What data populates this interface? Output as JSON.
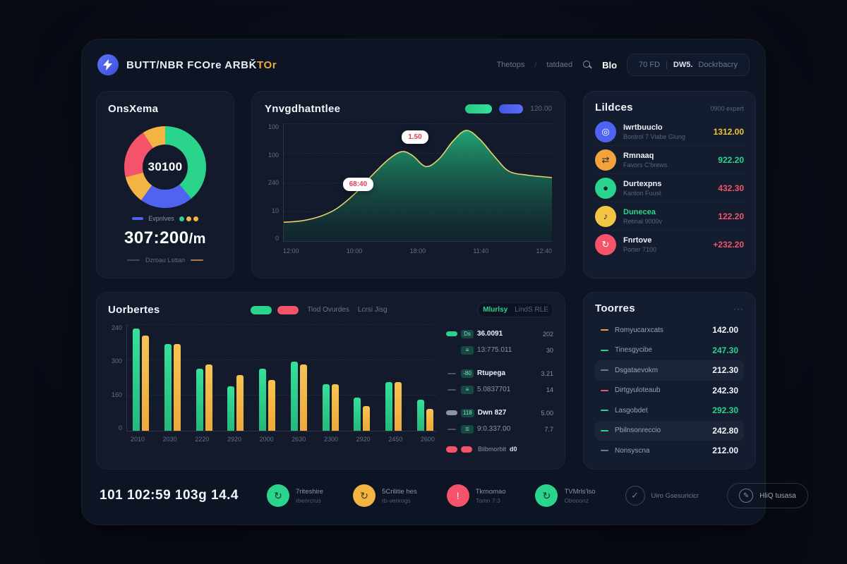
{
  "colors": {
    "green": "#2bd48d",
    "yellow": "#f2b544",
    "red": "#f4536a",
    "blue": "#4f63f0",
    "accent_text": "#f0a93c"
  },
  "header": {
    "brand_main": "BUTT/NBR FCOre ARBǨ",
    "brand_accent": "TOr",
    "nav_link1": "Thetops",
    "nav_sep": "/",
    "nav_link2": "tatdaed",
    "balance": "Blo",
    "pill_left": "70 FD",
    "pill_mid": "DW5.",
    "pill_right": "Dockrbacry"
  },
  "donut_card": {
    "title": "OnsXema",
    "center_value": "30100",
    "legend_label": "Evpnlves",
    "rate_value": "307:200",
    "rate_unit": "/m",
    "footnote": "Dzroau Lsttan",
    "segments": [
      {
        "label": "green",
        "color": "#2bd48d",
        "pct": 39
      },
      {
        "label": "blue",
        "color": "#4f63f0",
        "pct": 21
      },
      {
        "label": "yellow-bottom",
        "color": "#f2b544",
        "pct": 11
      },
      {
        "label": "red",
        "color": "#f4536a",
        "pct": 20
      },
      {
        "label": "yellow-top",
        "color": "#f2b544",
        "pct": 9
      }
    ]
  },
  "line_card": {
    "title": "Ynvgdhatntlee",
    "legend_value": "120.00",
    "tooltip_low": "68:40",
    "tooltip_high": "1.50",
    "chart": {
      "type": "area",
      "y_ticks": [
        "100",
        "100",
        "240",
        "10",
        "0"
      ],
      "x_ticks": [
        "12:00",
        "10:00",
        "18:00",
        "11:40",
        "12:40"
      ],
      "ymax": 150,
      "points": [
        [
          0,
          24
        ],
        [
          7,
          26
        ],
        [
          14,
          32
        ],
        [
          20,
          42
        ],
        [
          27,
          62
        ],
        [
          33,
          84
        ],
        [
          39,
          104
        ],
        [
          44,
          114
        ],
        [
          48,
          109
        ],
        [
          53,
          95
        ],
        [
          58,
          105
        ],
        [
          63,
          127
        ],
        [
          68,
          141
        ],
        [
          73,
          130
        ],
        [
          79,
          106
        ],
        [
          84,
          89
        ],
        [
          91,
          84
        ],
        [
          100,
          81
        ]
      ]
    }
  },
  "positions_card": {
    "title": "Lildces",
    "subtitle": "0900 expert",
    "items": [
      {
        "icon": "◎",
        "name": "Iwrtbuuclo",
        "desc": "Bontrol 7 Viabe Giung",
        "value": "1312.00"
      },
      {
        "icon": "⇄",
        "name": "Rmnaaq",
        "desc": "Favors C'brews",
        "value": "922.20"
      },
      {
        "icon": "●",
        "name": "Durtexpns",
        "desc": "Kanton Fuust",
        "value": "432.30"
      },
      {
        "icon": "♪",
        "name": "Dunecea",
        "desc": "Retinal 9000v",
        "value": "122.20"
      },
      {
        "icon": "↻",
        "name": "Fnrtove",
        "desc": "Porter 7100",
        "value": "+232.20"
      }
    ]
  },
  "bars_card": {
    "title": "Uorbertes",
    "legend_label1": "Tiod Ovurdes",
    "legend_label2": "Lcrsi Jisg",
    "toggle_active": "Mlurlsy",
    "toggle_inactive": "LindS RLE",
    "chart": {
      "type": "bar",
      "y_ticks": [
        "240",
        "300",
        "160",
        "0"
      ],
      "categories": [
        "2010",
        "2030",
        "2220",
        "2920",
        "2000",
        "2630",
        "2300",
        "2920",
        "2450",
        "2600"
      ],
      "series": [
        {
          "name": "green",
          "values": [
            230,
            195,
            140,
            100,
            140,
            155,
            105,
            75,
            110,
            70
          ]
        },
        {
          "name": "yellow",
          "values": [
            215,
            195,
            150,
            125,
            115,
            150,
            105,
            55,
            110,
            50
          ]
        }
      ],
      "ymax": 240
    },
    "table": {
      "rows": [
        {
          "badge": "Ds",
          "label": "36.0091",
          "value": "202"
        },
        {
          "badge": "≡",
          "label": "13:775.011",
          "value": "30"
        },
        {
          "badge": "-80",
          "label": "Rtupega",
          "value": "3.21"
        },
        {
          "badge": "≡",
          "label": "5.0837701",
          "value": "14"
        },
        {
          "badge": "118",
          "label": "Dwn 827",
          "value": "5.00"
        },
        {
          "badge": "≣",
          "label": "9:0.337.00",
          "value": "7.7"
        }
      ],
      "footer_label": "Bilbmorbit",
      "footer_value": "d0"
    }
  },
  "totals_card": {
    "title": "Toorres",
    "menu": "···",
    "rows": [
      {
        "name": "Romyucarxcats",
        "value": "142.00"
      },
      {
        "name": "Tinesgycibe",
        "value": "247.30"
      },
      {
        "name": "Dsgataevokm",
        "value": "212.30"
      },
      {
        "name": "Dirtgyuloteaub",
        "value": "242.30"
      },
      {
        "name": "Lasgobdet",
        "value": "292.30"
      },
      {
        "name": "Pbilnsonreccio",
        "value": "242.80"
      },
      {
        "name": "Nonsyscna",
        "value": "212.00"
      }
    ]
  },
  "footer": {
    "stat": "101 102:59 103g 14.4",
    "items": [
      {
        "icon": "↻",
        "line1": "7riteshire",
        "line2": "rbenrcrus"
      },
      {
        "icon": "↻",
        "line1": "5Crilitie hes",
        "line2": "rb-verirogs"
      },
      {
        "icon": "!",
        "line1": "Tkrnomao",
        "line2": "Tomn 7:3"
      },
      {
        "icon": "↻",
        "line1": "TVMrls'lso",
        "line2": "Obooonz"
      }
    ],
    "check_icon": "✓",
    "check_label": "Uiro Gsesuricicr",
    "button_icon": "✎",
    "button_label": "HliQ tusasa"
  }
}
